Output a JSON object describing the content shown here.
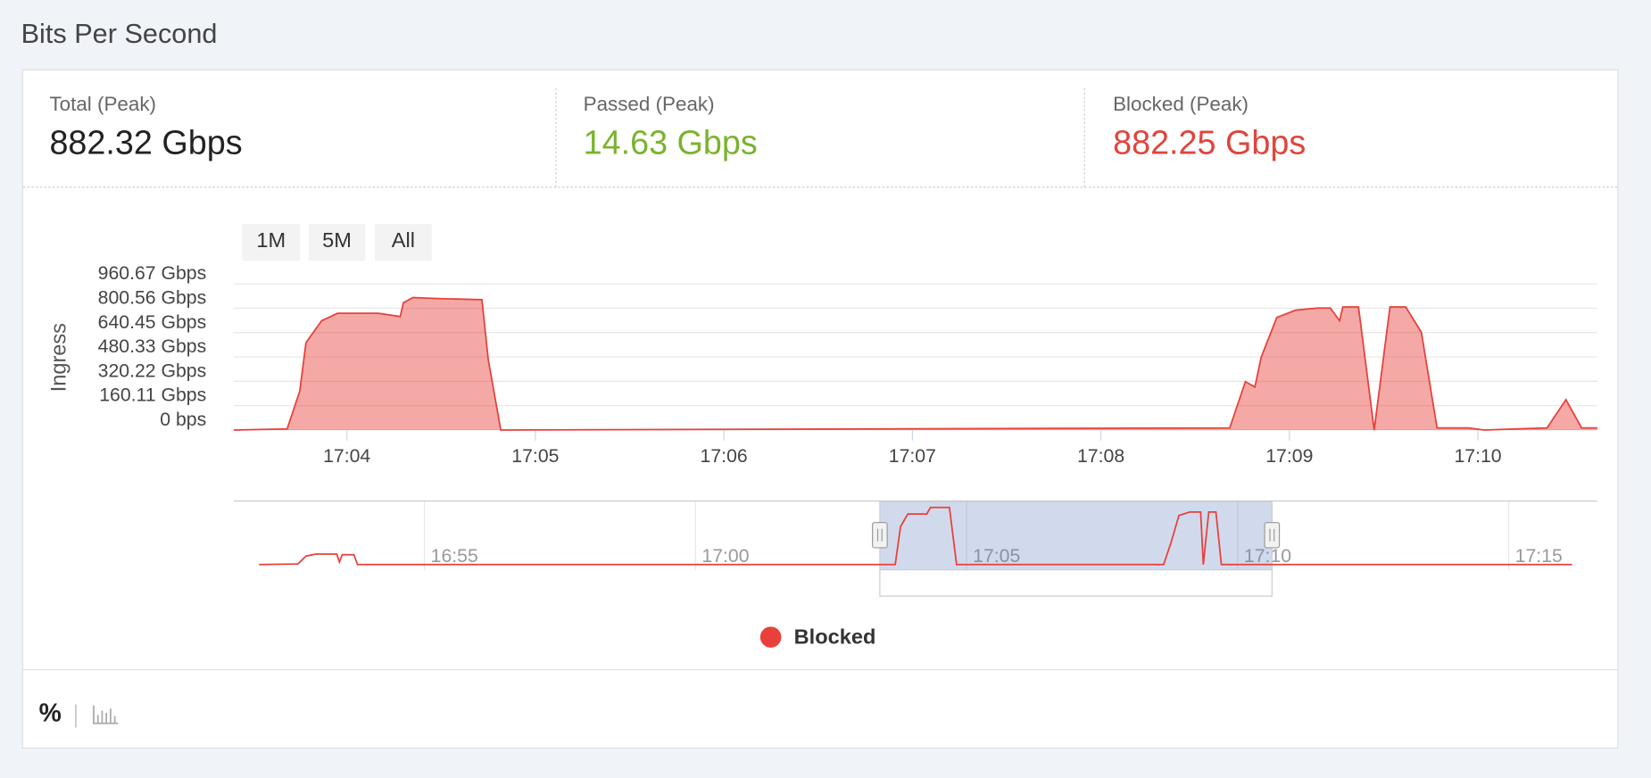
{
  "header": {
    "title": "Bits Per Second"
  },
  "stats": [
    {
      "label": "Total (Peak)",
      "value": "882.32 Gbps"
    },
    {
      "label": "Passed (Peak)",
      "value": "14.63 Gbps"
    },
    {
      "label": "Blocked (Peak)",
      "value": "882.25 Gbps"
    }
  ],
  "range_buttons": [
    "1M",
    "5M",
    "All"
  ],
  "footer": {
    "percent_toggle": "%"
  },
  "chart_data": {
    "type": "area",
    "y_label": "Ingress",
    "x": [
      "17:03:24",
      "17:03:41",
      "17:03:45",
      "17:03:47",
      "17:03:52",
      "17:03:57",
      "17:04:10",
      "17:04:17",
      "17:04:18",
      "17:04:21",
      "17:04:29",
      "17:04:43",
      "17:04:45",
      "17:04:49",
      "17:08:41",
      "17:08:46",
      "17:08:49",
      "17:08:51",
      "17:08:56",
      "17:09:02",
      "17:09:09",
      "17:09:13",
      "17:09:16",
      "17:09:17",
      "17:09:22",
      "17:09:27",
      "17:09:32",
      "17:09:37",
      "17:09:42",
      "17:09:47",
      "17:09:57",
      "17:10:02",
      "17:10:12",
      "17:10:22",
      "17:10:28",
      "17:10:33",
      "17:10:38"
    ],
    "series": [
      {
        "name": "Blocked",
        "color": "#e8403a",
        "values": [
          0,
          7,
          256,
          574,
          719,
          767,
          767,
          746,
          836,
          871,
          864,
          857,
          463,
          0,
          14,
          318,
          283,
          477,
          740,
          788,
          802,
          802,
          719,
          809,
          809,
          0,
          809,
          809,
          643,
          14,
          14,
          0,
          7,
          14,
          200,
          14,
          14
        ]
      }
    ],
    "xlim": [
      "17:03:24",
      "17:10:38"
    ],
    "xticks": [
      "17:04",
      "17:05",
      "17:06",
      "17:07",
      "17:08",
      "17:09",
      "17:10"
    ],
    "ylim": [
      0,
      960.67
    ],
    "yticks": [
      {
        "value": 0,
        "label": "0 bps"
      },
      {
        "value": 160.11,
        "label": "160.11 Gbps"
      },
      {
        "value": 320.22,
        "label": "320.22 Gbps"
      },
      {
        "value": 480.33,
        "label": "480.33 Gbps"
      },
      {
        "value": 640.45,
        "label": "640.45 Gbps"
      },
      {
        "value": 800.56,
        "label": "800.56 Gbps"
      },
      {
        "value": 960.67,
        "label": "960.67 Gbps"
      }
    ],
    "grid": true,
    "legend": "bottom",
    "navigator": {
      "x": [
        "16:51:57",
        "16:52:40",
        "16:52:49",
        "16:53:00",
        "16:53:23",
        "16:53:26",
        "16:53:29",
        "16:53:42",
        "16:53:46",
        "17:03:41",
        "17:03:47",
        "17:03:55",
        "17:04:16",
        "17:04:20",
        "17:04:41",
        "17:04:49",
        "17:08:38",
        "17:08:46",
        "17:08:55",
        "17:09:07",
        "17:09:19",
        "17:09:22",
        "17:09:28",
        "17:09:36",
        "17:09:42",
        "17:16:10"
      ],
      "values": [
        0,
        10,
        130,
        160,
        160,
        40,
        150,
        150,
        0,
        0,
        580,
        770,
        770,
        870,
        870,
        0,
        0,
        320,
        750,
        800,
        800,
        0,
        800,
        800,
        0,
        0
      ],
      "xlim": [
        "16:51:29",
        "17:16:38"
      ],
      "xticks": [
        "16:55",
        "17:00",
        "17:05",
        "17:10",
        "17:15"
      ]
    }
  }
}
